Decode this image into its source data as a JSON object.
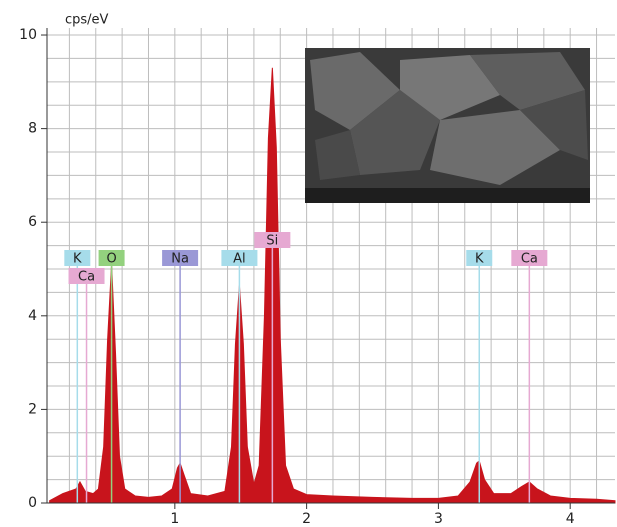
{
  "chart_data": {
    "type": "area",
    "y_label": "cps/eV",
    "xlim": [
      0.03,
      4.34
    ],
    "ylim": [
      0,
      10.15
    ],
    "xticks": [
      1,
      2,
      3,
      4
    ],
    "yticks": [
      0,
      2,
      4,
      6,
      8,
      10
    ],
    "grid": true,
    "minor_grid": {
      "x": 0.2,
      "y": 0.5
    },
    "color": "#c8141c",
    "x": [
      0.05,
      0.15,
      0.25,
      0.28,
      0.32,
      0.38,
      0.42,
      0.46,
      0.49,
      0.52,
      0.55,
      0.58,
      0.62,
      0.7,
      0.8,
      0.9,
      0.98,
      1.02,
      1.04,
      1.07,
      1.12,
      1.25,
      1.38,
      1.43,
      1.46,
      1.49,
      1.52,
      1.55,
      1.6,
      1.64,
      1.68,
      1.71,
      1.74,
      1.77,
      1.8,
      1.84,
      1.9,
      2.0,
      2.2,
      2.5,
      2.8,
      3.0,
      3.15,
      3.24,
      3.29,
      3.31,
      3.35,
      3.42,
      3.55,
      3.63,
      3.69,
      3.75,
      3.85,
      4.0,
      4.2,
      4.34
    ],
    "values": [
      0.05,
      0.2,
      0.3,
      0.45,
      0.25,
      0.2,
      0.3,
      1.2,
      3.5,
      5.1,
      3.2,
      1.0,
      0.3,
      0.15,
      0.12,
      0.15,
      0.3,
      0.75,
      0.85,
      0.6,
      0.2,
      0.15,
      0.25,
      1.2,
      3.4,
      4.65,
      3.4,
      1.2,
      0.4,
      0.8,
      4.0,
      7.8,
      9.3,
      7.6,
      3.5,
      0.8,
      0.3,
      0.18,
      0.15,
      0.12,
      0.1,
      0.1,
      0.15,
      0.45,
      0.85,
      0.9,
      0.5,
      0.2,
      0.2,
      0.35,
      0.45,
      0.3,
      0.15,
      0.1,
      0.08,
      0.05
    ],
    "markers": [
      {
        "label": "K",
        "energy": 0.26,
        "color": "#a6dcea"
      },
      {
        "label": "Ca",
        "energy": 0.33,
        "color": "#e6a9d2"
      },
      {
        "label": "O",
        "energy": 0.52,
        "color": "#93d17e"
      },
      {
        "label": "Na",
        "energy": 1.04,
        "color": "#9a98d6"
      },
      {
        "label": "Al",
        "energy": 1.49,
        "color": "#a6dcea"
      },
      {
        "label": "Si",
        "energy": 1.74,
        "color": "#e6a9d2"
      },
      {
        "label": "K",
        "energy": 3.31,
        "color": "#a6dcea"
      },
      {
        "label": "Ca",
        "energy": 3.69,
        "color": "#e6a9d2"
      }
    ]
  }
}
